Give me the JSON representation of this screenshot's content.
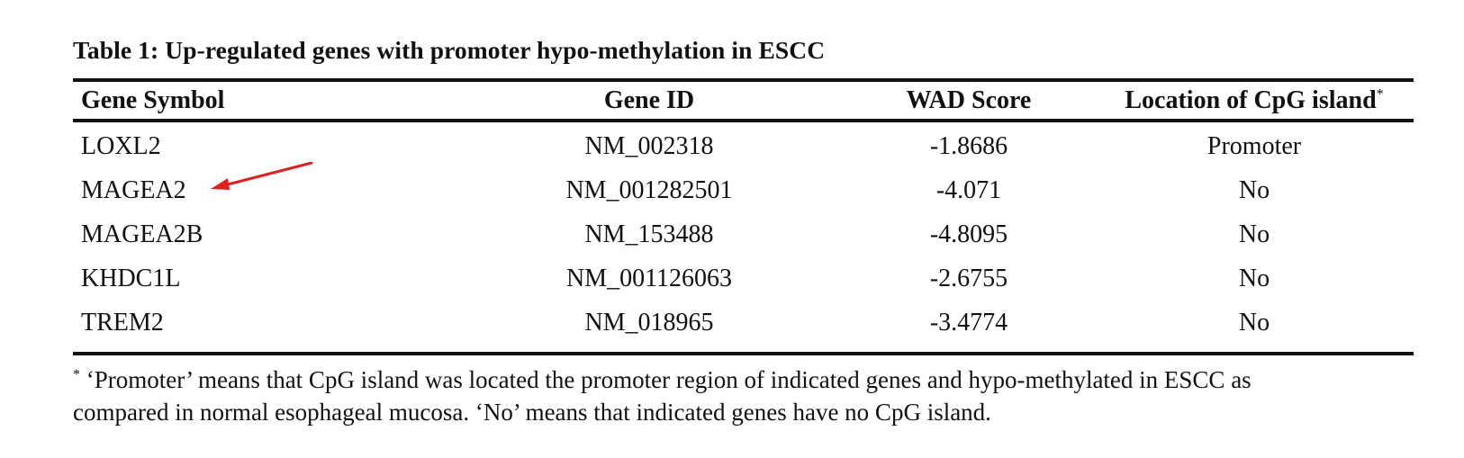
{
  "table": {
    "title": "Table 1: Up-regulated genes with promoter hypo-methylation in ESCC",
    "headers": {
      "gene_symbol": "Gene Symbol",
      "gene_id": "Gene ID",
      "wad_score": "WAD Score",
      "location": "Location of CpG island",
      "location_marker": "*"
    },
    "rows": [
      {
        "gene_symbol": "LOXL2",
        "gene_id": "NM_002318",
        "wad_score": "-1.8686",
        "location": "Promoter"
      },
      {
        "gene_symbol": "MAGEA2",
        "gene_id": "NM_001282501",
        "wad_score": "-4.071",
        "location": "No"
      },
      {
        "gene_symbol": "MAGEA2B",
        "gene_id": "NM_153488",
        "wad_score": "-4.8095",
        "location": "No"
      },
      {
        "gene_symbol": "KHDC1L",
        "gene_id": "NM_001126063",
        "wad_score": "-2.6755",
        "location": "No"
      },
      {
        "gene_symbol": "TREM2",
        "gene_id": "NM_018965",
        "wad_score": "-3.4774",
        "location": "No"
      }
    ]
  },
  "footnote": {
    "marker": "*",
    "line1": " ‘Promoter’ means that CpG island was located the promoter region of indicated genes and hypo-methylated in ESCC as",
    "line2": "compared in normal esophageal mucosa. ‘No’ means that indicated genes have no CpG island."
  },
  "annotation": {
    "arrow_color": "#e02020",
    "arrow_points_to": "MAGEA2"
  }
}
